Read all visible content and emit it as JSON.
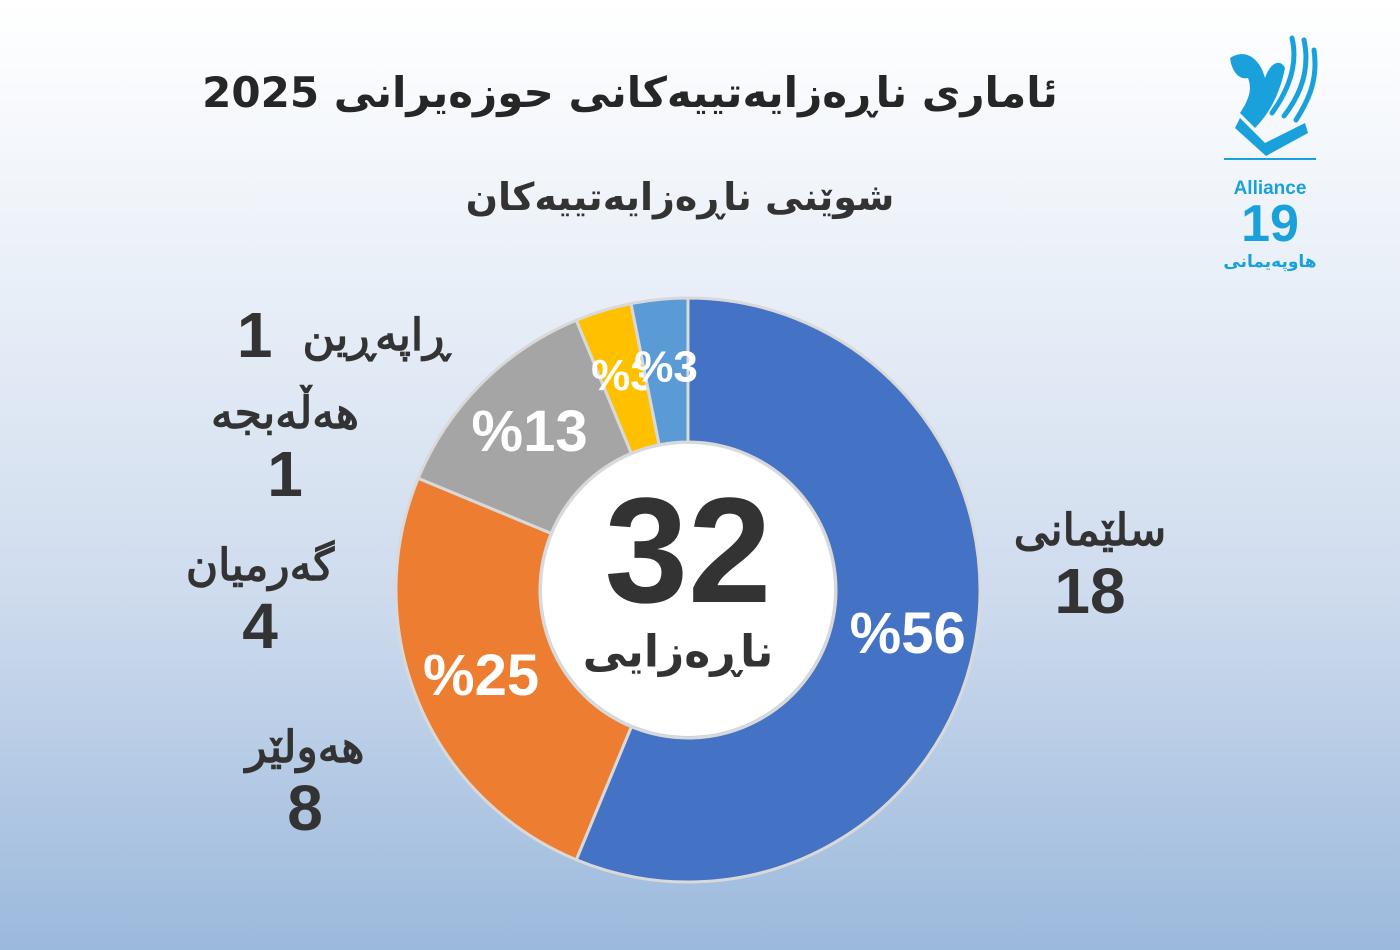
{
  "title": "ئاماری ناڕەزایەتییەکانی حوزەیرانی 2025",
  "subtitle": "شوێنی ناڕەزایەتییەکان",
  "logo": {
    "name": "Alliance",
    "number": "19",
    "subtitle": "هاوپەیمانی",
    "icon": "dove-hand-icon",
    "color": "#1aa1dc"
  },
  "center": {
    "total": "32",
    "label": "ناڕەزایی"
  },
  "chart_data": {
    "type": "donut",
    "title": "شوێنی ناڕەزایەتییەکان",
    "total": 32,
    "slices": [
      {
        "name": "سلێمانی",
        "value": 18,
        "percent_label": "%56",
        "color": "#4472c4"
      },
      {
        "name": "هەولێر",
        "value": 8,
        "percent_label": "%25",
        "color": "#ed7d31"
      },
      {
        "name": "گەرمیان",
        "value": 4,
        "percent_label": "%13",
        "color": "#a5a5a5"
      },
      {
        "name": "هەڵەبجە",
        "value": 1,
        "percent_label": "%3",
        "color": "#ffc000"
      },
      {
        "name": "ڕاپەڕین",
        "value": 1,
        "percent_label": "%3",
        "color": "#5b9bd5"
      }
    ]
  },
  "labels": {
    "slemani": {
      "name": "سلێمانی",
      "value": "18"
    },
    "hawler": {
      "name": "هەولێر",
      "value": "8"
    },
    "garmian": {
      "name": "گەرمیان",
      "value": "4"
    },
    "halabja": {
      "name": "هەڵەبجە",
      "value": "1"
    },
    "raparin": {
      "name": "ڕاپەڕین",
      "value": "1"
    }
  }
}
